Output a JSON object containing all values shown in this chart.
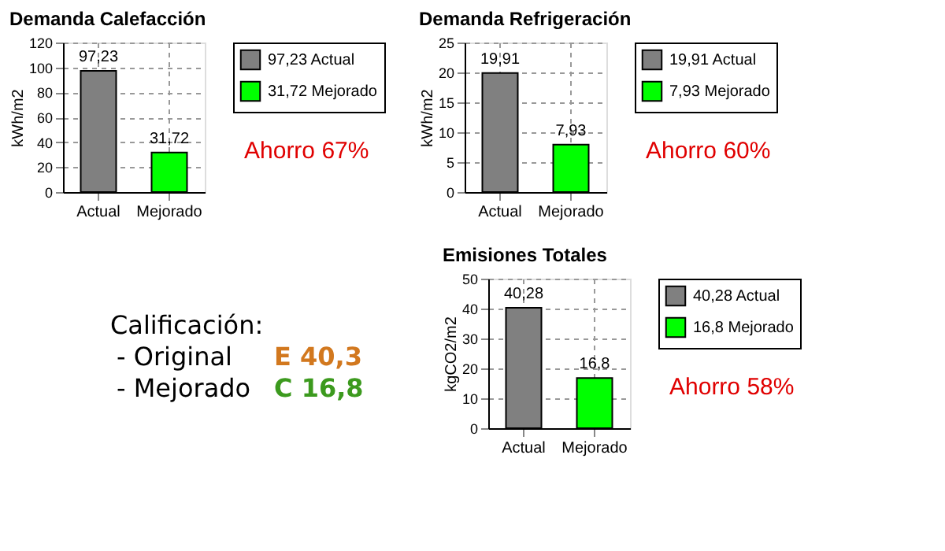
{
  "chart_data": [
    {
      "type": "bar",
      "title": "Demanda Calefacción",
      "ylabel": "kWh/m2",
      "categories": [
        "Actual",
        "Mejorado"
      ],
      "series": [
        {
          "name": "97,23 Actual",
          "color": "#808080",
          "values": [
            97.23,
            null
          ],
          "value_labels": [
            "97,23",
            null
          ]
        },
        {
          "name": "31,72 Mejorado",
          "color": "#00ff00",
          "values": [
            null,
            31.72
          ],
          "value_labels": [
            null,
            "31,72"
          ]
        }
      ],
      "ylim": [
        0,
        120
      ],
      "yticks": [
        0,
        20,
        40,
        60,
        80,
        100,
        120
      ],
      "grid": true,
      "legend": "right",
      "annotations": [
        "Ahorro 67%"
      ]
    },
    {
      "type": "bar",
      "title": "Demanda Refrigeración",
      "ylabel": "kWh/m2",
      "categories": [
        "Actual",
        "Mejorado"
      ],
      "series": [
        {
          "name": "19,91 Actual",
          "color": "#808080",
          "values": [
            19.91,
            null
          ],
          "value_labels": [
            "19,91",
            null
          ]
        },
        {
          "name": "7,93 Mejorado",
          "color": "#00ff00",
          "values": [
            null,
            7.93
          ],
          "value_labels": [
            null,
            "7,93"
          ]
        }
      ],
      "ylim": [
        0,
        25
      ],
      "yticks": [
        0,
        5,
        10,
        15,
        20,
        25
      ],
      "grid": true,
      "legend": "right",
      "annotations": [
        "Ahorro 60%"
      ]
    },
    {
      "type": "other",
      "title": "Calificación:",
      "annotations": [
        "- Original",
        "E 40,3",
        "- Mejorado",
        "C 16,8"
      ],
      "colors": [
        "#000000",
        "#d2781e",
        "#000000",
        "#3c9a1e"
      ]
    },
    {
      "type": "bar",
      "title": "Emisiones Totales",
      "ylabel": "kgCO2/m2",
      "categories": [
        "Actual",
        "Mejorado"
      ],
      "series": [
        {
          "name": "40,28 Actual",
          "color": "#808080",
          "values": [
            40.28,
            null
          ],
          "value_labels": [
            "40,28",
            null
          ]
        },
        {
          "name": "16,8 Mejorado",
          "color": "#00ff00",
          "values": [
            null,
            16.8
          ],
          "value_labels": [
            null,
            "16,8"
          ]
        }
      ],
      "ylim": [
        0,
        50
      ],
      "yticks": [
        0,
        10,
        20,
        30,
        40,
        50
      ],
      "grid": true,
      "legend": "right",
      "annotations": [
        "Ahorro 58%"
      ]
    }
  ]
}
